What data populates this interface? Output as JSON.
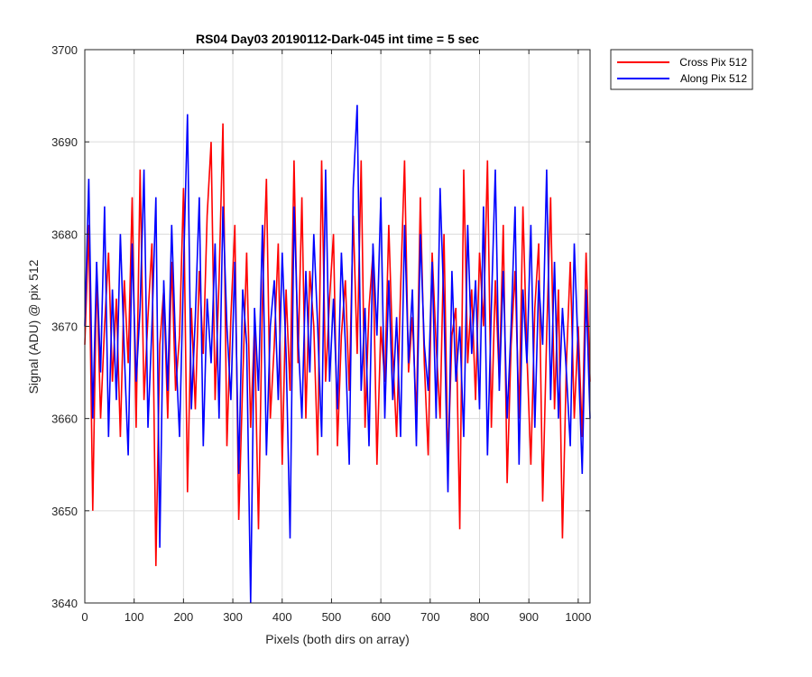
{
  "chart_data": {
    "type": "line",
    "title": "RS04 Day03 20190112-Dark-045 int time = 5 sec",
    "xlabel": "Pixels (both dirs on array)",
    "ylabel": "Signal (ADU) @ pix 512",
    "xlim": [
      0,
      1024
    ],
    "ylim": [
      3640,
      3700
    ],
    "xticks": [
      "0",
      "100",
      "200",
      "300",
      "400",
      "500",
      "600",
      "700",
      "800",
      "900",
      "1000"
    ],
    "yticks": [
      "3640",
      "3650",
      "3660",
      "3670",
      "3680",
      "3690",
      "3700"
    ],
    "grid": true,
    "legend_position": "outside-top-right",
    "series": [
      {
        "name": "Cross Pix 512",
        "color": "#ff0000",
        "sample_step": 8,
        "values": [
          3668,
          3681,
          3650,
          3676,
          3660,
          3670,
          3678,
          3664,
          3673,
          3658,
          3675,
          3666,
          3684,
          3659,
          3687,
          3662,
          3671,
          3679,
          3644,
          3668,
          3674,
          3660,
          3677,
          3663,
          3669,
          3685,
          3652,
          3672,
          3661,
          3676,
          3667,
          3682,
          3690,
          3662,
          3675,
          3692,
          3657,
          3671,
          3681,
          3649,
          3664,
          3678,
          3659,
          3670,
          3648,
          3673,
          3686,
          3660,
          3668,
          3679,
          3655,
          3674,
          3663,
          3688,
          3666,
          3684,
          3660,
          3676,
          3670,
          3656,
          3688,
          3664,
          3673,
          3680,
          3657,
          3669,
          3675,
          3663,
          3682,
          3667,
          3688,
          3659,
          3672,
          3678,
          3655,
          3670,
          3664,
          3681,
          3667,
          3658,
          3674,
          3688,
          3665,
          3671,
          3660,
          3684,
          3666,
          3656,
          3678,
          3668,
          3660,
          3680,
          3655,
          3669,
          3672,
          3648,
          3687,
          3666,
          3674,
          3662,
          3678,
          3670,
          3688,
          3659,
          3675,
          3664,
          3681,
          3653,
          3668,
          3676,
          3660,
          3683,
          3667,
          3655,
          3672,
          3679,
          3651,
          3669,
          3684,
          3661,
          3674,
          3647,
          3666,
          3677,
          3660,
          3670,
          3658,
          3678,
          3664
        ]
      },
      {
        "name": "Along Pix 512",
        "color": "#0000ff",
        "sample_step": 8,
        "values": [
          3670,
          3686,
          3660,
          3677,
          3665,
          3683,
          3658,
          3674,
          3662,
          3680,
          3667,
          3656,
          3679,
          3664,
          3672,
          3687,
          3659,
          3670,
          3684,
          3646,
          3675,
          3663,
          3681,
          3668,
          3658,
          3676,
          3693,
          3661,
          3671,
          3684,
          3657,
          3673,
          3666,
          3679,
          3660,
          3683,
          3670,
          3662,
          3677,
          3654,
          3674,
          3668,
          3640,
          3672,
          3663,
          3681,
          3656,
          3670,
          3675,
          3662,
          3678,
          3667,
          3647,
          3683,
          3669,
          3660,
          3676,
          3665,
          3680,
          3670,
          3658,
          3687,
          3664,
          3673,
          3661,
          3678,
          3668,
          3655,
          3685,
          3694,
          3663,
          3672,
          3657,
          3679,
          3669,
          3684,
          3660,
          3675,
          3662,
          3671,
          3658,
          3681,
          3666,
          3674,
          3657,
          3680,
          3668,
          3663,
          3677,
          3660,
          3685,
          3672,
          3652,
          3676,
          3664,
          3670,
          3658,
          3681,
          3667,
          3675,
          3661,
          3683,
          3656,
          3672,
          3687,
          3663,
          3676,
          3660,
          3670,
          3683,
          3655,
          3674,
          3666,
          3681,
          3659,
          3675,
          3668,
          3687,
          3662,
          3677,
          3660,
          3672,
          3665,
          3657,
          3679,
          3667,
          3654,
          3674,
          3660
        ]
      }
    ]
  }
}
